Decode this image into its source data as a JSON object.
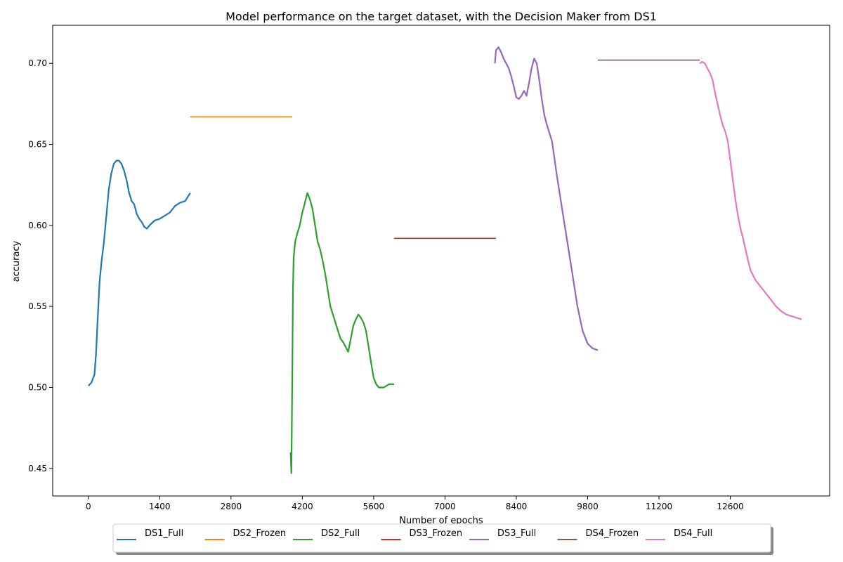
{
  "chart_data": {
    "type": "line",
    "title": "Model performance on the target dataset, with the Decision Maker from DS1",
    "xlabel": "Number of epochs",
    "ylabel": "accuracy",
    "xlim": [
      -700,
      14550
    ],
    "ylim": [
      0.433,
      0.7235
    ],
    "x_ticks": [
      0,
      1400,
      2800,
      4200,
      5600,
      7000,
      8400,
      9800,
      11200,
      12600
    ],
    "y_ticks": [
      0.45,
      0.5,
      0.55,
      0.6,
      0.65,
      0.7
    ],
    "y_tick_labels": [
      "0.45",
      "0.50",
      "0.55",
      "0.60",
      "0.65",
      "0.70"
    ],
    "grid": false,
    "legend_position": "bottom-center",
    "series": [
      {
        "name": "DS1_Full",
        "color": "#1f77b4",
        "x": [
          0,
          60,
          120,
          150,
          180,
          220,
          260,
          300,
          350,
          400,
          450,
          500,
          550,
          600,
          650,
          700,
          750,
          800,
          850,
          900,
          950,
          1000,
          1050,
          1100,
          1150,
          1200,
          1300,
          1400,
          1500,
          1600,
          1700,
          1800,
          1900,
          2000
        ],
        "y": [
          0.501,
          0.503,
          0.508,
          0.52,
          0.54,
          0.565,
          0.578,
          0.588,
          0.605,
          0.622,
          0.632,
          0.638,
          0.64,
          0.64,
          0.638,
          0.634,
          0.628,
          0.62,
          0.615,
          0.613,
          0.607,
          0.604,
          0.602,
          0.599,
          0.598,
          0.6,
          0.603,
          0.604,
          0.606,
          0.608,
          0.612,
          0.614,
          0.615,
          0.62
        ]
      },
      {
        "name": "DS2_Frozen",
        "color": "#ff7f0e",
        "x": [
          2000,
          4000
        ],
        "y": [
          0.667,
          0.667
        ]
      },
      {
        "name": "DS2_Full",
        "color": "#2ca02c",
        "x": [
          3970,
          3985,
          4000,
          4015,
          4030,
          4060,
          4100,
          4150,
          4200,
          4250,
          4300,
          4350,
          4400,
          4450,
          4500,
          4550,
          4600,
          4650,
          4700,
          4750,
          4800,
          4850,
          4900,
          4950,
          5000,
          5050,
          5100,
          5150,
          5200,
          5250,
          5300,
          5350,
          5400,
          5450,
          5500,
          5550,
          5600,
          5650,
          5700,
          5750,
          5800,
          5850,
          5900,
          5950,
          6000
        ],
        "y": [
          0.46,
          0.447,
          0.5,
          0.56,
          0.58,
          0.59,
          0.595,
          0.6,
          0.608,
          0.614,
          0.62,
          0.616,
          0.61,
          0.6,
          0.59,
          0.585,
          0.578,
          0.57,
          0.56,
          0.55,
          0.545,
          0.54,
          0.535,
          0.53,
          0.528,
          0.525,
          0.522,
          0.53,
          0.538,
          0.542,
          0.545,
          0.543,
          0.54,
          0.535,
          0.525,
          0.515,
          0.506,
          0.502,
          0.5,
          0.5,
          0.5,
          0.501,
          0.502,
          0.502,
          0.502
        ]
      },
      {
        "name": "DS3_Frozen",
        "color": "#d62728",
        "x": [
          6000,
          8000
        ],
        "y": [
          0.592,
          0.592
        ]
      },
      {
        "name": "DS3_Full",
        "color": "#9467bd",
        "x": [
          7980,
          8000,
          8050,
          8100,
          8150,
          8200,
          8250,
          8300,
          8350,
          8400,
          8450,
          8500,
          8550,
          8600,
          8650,
          8700,
          8750,
          8800,
          8850,
          8900,
          8950,
          9000,
          9100,
          9200,
          9300,
          9400,
          9500,
          9600,
          9700,
          9800,
          9900,
          10000
        ],
        "y": [
          0.7,
          0.708,
          0.71,
          0.707,
          0.703,
          0.7,
          0.697,
          0.692,
          0.686,
          0.679,
          0.678,
          0.68,
          0.683,
          0.68,
          0.688,
          0.697,
          0.703,
          0.7,
          0.69,
          0.678,
          0.668,
          0.662,
          0.652,
          0.63,
          0.61,
          0.59,
          0.57,
          0.55,
          0.535,
          0.527,
          0.524,
          0.523
        ]
      },
      {
        "name": "DS4_Frozen",
        "color": "#8c564b",
        "x": [
          10000,
          12000
        ],
        "y": [
          0.702,
          0.702
        ]
      },
      {
        "name": "DS4_Full",
        "color": "#e377c2",
        "x": [
          12000,
          12050,
          12100,
          12150,
          12200,
          12250,
          12300,
          12350,
          12400,
          12450,
          12500,
          12550,
          12600,
          12650,
          12700,
          12750,
          12800,
          12850,
          12900,
          12950,
          13000,
          13100,
          13200,
          13300,
          13400,
          13500,
          13600,
          13700,
          13800,
          13900,
          14000
        ],
        "y": [
          0.7,
          0.701,
          0.7,
          0.697,
          0.694,
          0.69,
          0.682,
          0.675,
          0.668,
          0.662,
          0.658,
          0.652,
          0.64,
          0.628,
          0.616,
          0.606,
          0.598,
          0.592,
          0.585,
          0.578,
          0.572,
          0.566,
          0.562,
          0.558,
          0.554,
          0.55,
          0.547,
          0.545,
          0.544,
          0.543,
          0.542
        ]
      }
    ]
  }
}
